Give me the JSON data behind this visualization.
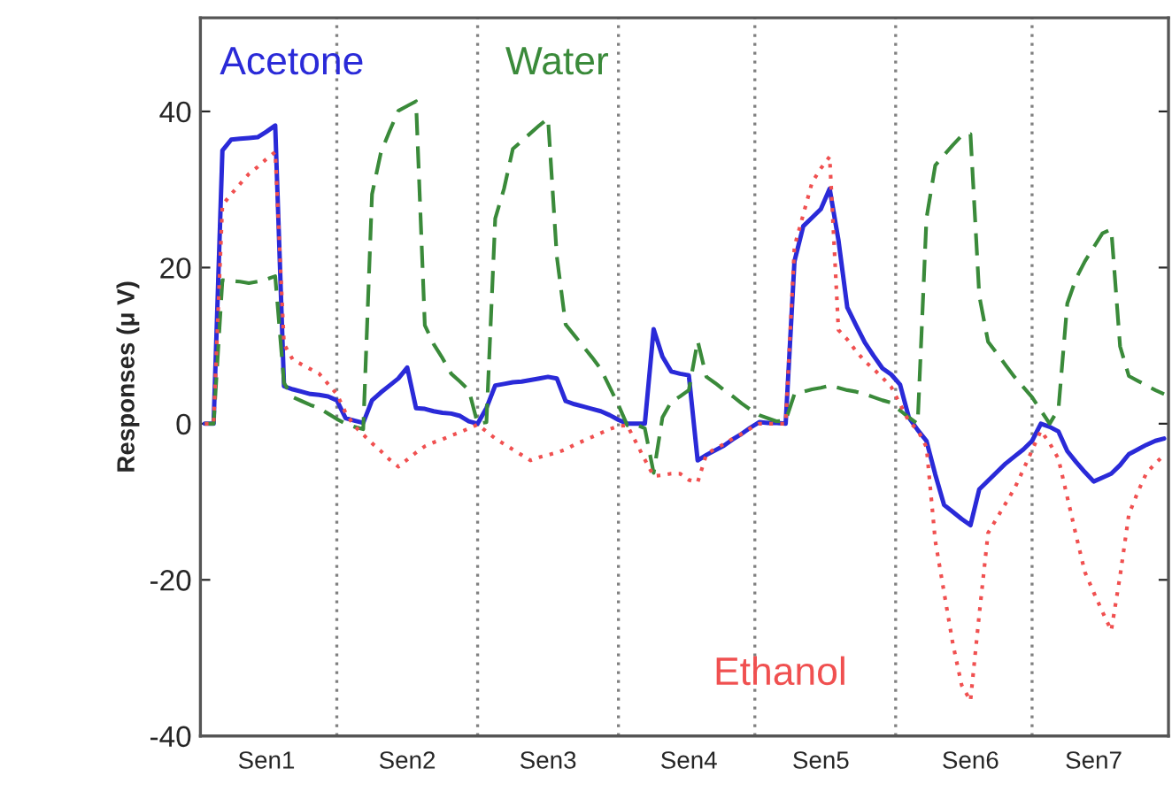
{
  "chart_data": {
    "type": "line",
    "ylabel": "Responses (μ V)",
    "categories": [
      null,
      null,
      null,
      null,
      null,
      null,
      null,
      "Sen1",
      null,
      null,
      null,
      null,
      null,
      null,
      null,
      null,
      null,
      null,
      null,
      null,
      null,
      null,
      null,
      "Sen2",
      null,
      null,
      null,
      null,
      null,
      null,
      null,
      null,
      null,
      null,
      null,
      null,
      null,
      null,
      null,
      "Sen3",
      null,
      null,
      null,
      null,
      null,
      null,
      null,
      null,
      null,
      null,
      null,
      null,
      null,
      null,
      null,
      "Sen4",
      null,
      null,
      null,
      null,
      null,
      null,
      null,
      null,
      null,
      null,
      null,
      null,
      null,
      null,
      "Sen5",
      null,
      null,
      null,
      null,
      null,
      null,
      null,
      null,
      null,
      null,
      null,
      null,
      null,
      null,
      null,
      null,
      "Sen6",
      null,
      null,
      null,
      null,
      null,
      null,
      null,
      null,
      null,
      null,
      null,
      null,
      null,
      "Sen7",
      null,
      null,
      null,
      null,
      null,
      null,
      null,
      null
    ],
    "ylim": [
      -40,
      52
    ],
    "yticks": [
      -40,
      -20,
      0,
      20,
      40
    ],
    "grid": false,
    "legend": false,
    "series": [
      {
        "name": "Acetone",
        "color": "#2a2ad8",
        "line_style": "solid",
        "values": [
          0,
          0,
          35,
          36.4,
          36.5,
          36.6,
          36.7,
          37.4,
          38.2,
          4.8,
          4.4,
          4.1,
          3.8,
          3.7,
          3.5,
          3.0,
          0.7,
          0.4,
          0.1,
          3.0,
          4.0,
          4.9,
          5.8,
          7.2,
          2.0,
          1.9,
          1.6,
          1.4,
          1.3,
          1.0,
          0.3,
          0,
          2.0,
          4.9,
          5.1,
          5.3,
          5.4,
          5.6,
          5.8,
          6.0,
          5.8,
          2.9,
          2.5,
          2.2,
          1.9,
          1.6,
          1.1,
          0.5,
          0,
          0,
          0,
          12.1,
          8.6,
          6.7,
          6.4,
          6.2,
          -4.7,
          -4.0,
          -3.4,
          -2.8,
          -2.0,
          -1.3,
          -0.5,
          0.2,
          0.1,
          0.1,
          0,
          20.8,
          25.3,
          26.4,
          27.5,
          30.1,
          23.5,
          14.9,
          12.6,
          10.4,
          8.7,
          7.1,
          6.3,
          5.0,
          0.8,
          -0.8,
          -2.2,
          -6.5,
          -10.4,
          -11.3,
          -12.2,
          -13.0,
          -8.4,
          -7.3,
          -6.2,
          -5.1,
          -4.2,
          -3.3,
          -2.2,
          0,
          -0.4,
          -1.0,
          -3.5,
          -4.9,
          -6.2,
          -7.4,
          -6.9,
          -6.4,
          -5.3,
          -3.9,
          -3.3,
          -2.7,
          -2.2,
          -1.9
        ]
      },
      {
        "name": "Water",
        "color": "#3a8a3a",
        "line_style": "dashed",
        "values": [
          0,
          0,
          18.4,
          18.3,
          18.2,
          18.0,
          18.2,
          18.5,
          18.9,
          5.2,
          3.4,
          2.9,
          2.4,
          2.0,
          1.3,
          0.6,
          0,
          -0.4,
          -0.7,
          29.4,
          34.7,
          37.5,
          40.1,
          40.7,
          41.3,
          12.6,
          10.2,
          8.4,
          6.4,
          5.4,
          4.3,
          0,
          0.2,
          26.3,
          30.1,
          35.2,
          36.2,
          37.2,
          38.2,
          39.1,
          21.4,
          12.7,
          11.3,
          9.9,
          8.5,
          7.0,
          4.7,
          2.4,
          -0.2,
          -0.1,
          -0.6,
          -6.3,
          0.8,
          2.8,
          3.5,
          4.3,
          10.6,
          6.0,
          5.2,
          4.3,
          3.5,
          2.6,
          1.8,
          1.1,
          0.7,
          0.3,
          0.4,
          3.8,
          4.1,
          4.4,
          4.6,
          4.9,
          4.6,
          4.3,
          4.1,
          3.8,
          3.4,
          3.0,
          2.7,
          1.7,
          0.8,
          0,
          26.3,
          33.1,
          34.4,
          35.7,
          36.9,
          37.1,
          16.4,
          10.5,
          9.0,
          7.5,
          6.0,
          4.7,
          3.4,
          1.7,
          0,
          1.9,
          15.4,
          18.6,
          20.8,
          22.6,
          24.4,
          24.9,
          9.9,
          6.1,
          5.5,
          4.9,
          4.3,
          3.8
        ]
      },
      {
        "name": "Ethanol",
        "color": "#f05050",
        "line_style": "dotted",
        "values": [
          0,
          0,
          28.0,
          29.4,
          30.7,
          32.0,
          32.9,
          33.9,
          34.8,
          10.2,
          8.2,
          7.6,
          7.0,
          6.4,
          5.1,
          3.8,
          1.4,
          -0.3,
          -1.4,
          -2.5,
          -3.5,
          -4.6,
          -5.5,
          -4.6,
          -3.7,
          -2.9,
          -2.4,
          -2.0,
          -1.5,
          -1.1,
          -0.6,
          -0.1,
          -1.0,
          -1.9,
          -2.6,
          -3.3,
          -4.0,
          -4.7,
          -4.3,
          -4.0,
          -3.7,
          -3.3,
          -2.7,
          -2.2,
          -1.7,
          -1.2,
          -0.7,
          -0.3,
          -0.2,
          -2.4,
          -4.6,
          -6.7,
          -6.6,
          -6.4,
          -6.4,
          -7.2,
          -7.5,
          -3.9,
          -3.2,
          -2.6,
          -1.9,
          -1.3,
          -0.6,
          0,
          0,
          0,
          0,
          22.7,
          26.8,
          30.9,
          32.7,
          34.2,
          12.0,
          10.8,
          9.3,
          8.0,
          7.0,
          5.9,
          4.7,
          2.5,
          0.3,
          -0.8,
          -3.0,
          -15.0,
          -21.6,
          -28.2,
          -33.5,
          -35.5,
          -24.4,
          -14.0,
          -12.1,
          -10.2,
          -8.3,
          -5.9,
          -3.4,
          -0.9,
          -2.5,
          -4.5,
          -9.4,
          -14.3,
          -19.0,
          -21.6,
          -24.1,
          -26.5,
          -19.5,
          -11.6,
          -8.8,
          -6.3,
          -5.1,
          -4.0
        ]
      }
    ]
  }
}
